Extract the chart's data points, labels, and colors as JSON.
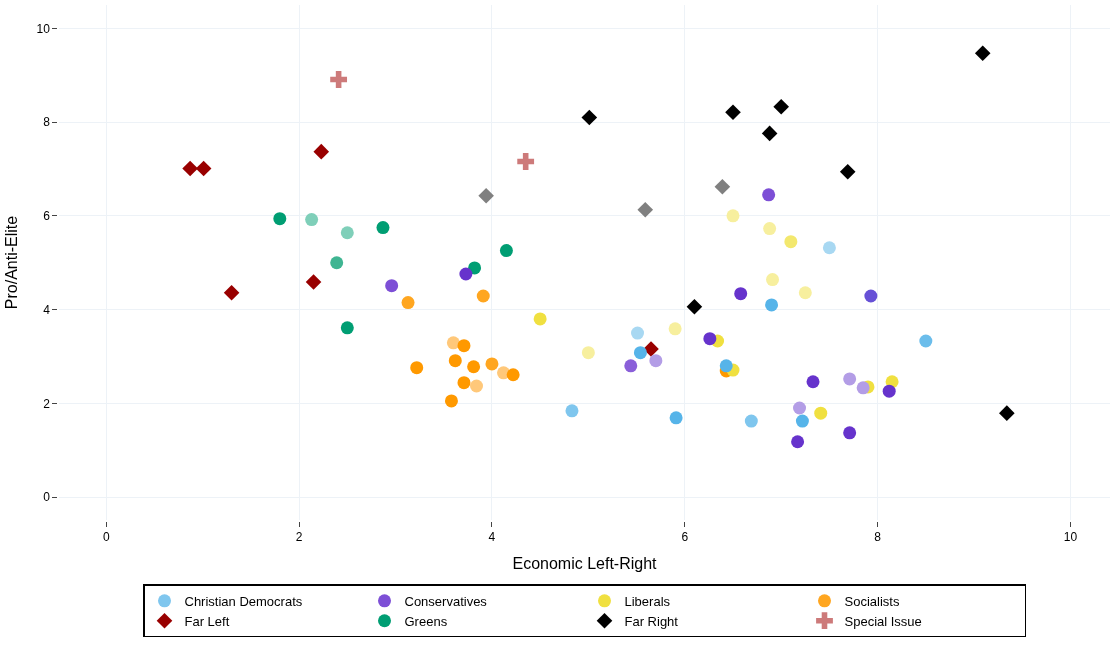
{
  "chart_data": {
    "type": "scatter",
    "xlabel": "Economic Left-Right",
    "ylabel": "Pro/Anti-Elite",
    "xlim": [
      -0.49,
      10.41
    ],
    "ylim": [
      -0.49,
      10.5
    ],
    "xticks": [
      0,
      2,
      4,
      6,
      8,
      10
    ],
    "yticks": [
      0,
      2,
      4,
      6,
      8,
      10
    ],
    "grid": true,
    "legend": "bottom",
    "series": [
      {
        "name": "Christian Democrats",
        "marker": "circle",
        "x": [
          4.83,
          5.51,
          5.54,
          5.91,
          6.69,
          6.43,
          6.9,
          7.5,
          7.22,
          8.5
        ],
        "values": [
          1.84,
          3.5,
          3.08,
          1.69,
          1.62,
          2.8,
          4.1,
          5.32,
          1.62,
          3.33
        ],
        "colors": [
          "#7fc6ee",
          "#a8d8f2",
          "#56b4e9",
          "#56b4e9",
          "#7fc6ee",
          "#56b4e9",
          "#56b4e9",
          "#a8d8f2",
          "#56b4e9",
          "#6bbdeb"
        ]
      },
      {
        "name": "Conservatives",
        "marker": "circle",
        "x": [
          2.96,
          3.73,
          6.87,
          6.58,
          7.93,
          6.26,
          5.44,
          5.7,
          7.33,
          7.71,
          7.85,
          8.12,
          7.19,
          7.17,
          7.71
        ],
        "values": [
          4.51,
          4.76,
          6.45,
          4.34,
          4.29,
          3.38,
          2.8,
          2.91,
          2.46,
          2.52,
          2.33,
          2.26,
          1.9,
          1.18,
          1.37
        ],
        "colors": [
          "#7d4fd6",
          "#6633cc",
          "#7d4fd6",
          "#6633cc",
          "#6650d6",
          "#6633cc",
          "#8a5fd9",
          "#b39de6",
          "#6633cc",
          "#b39de6",
          "#b39de6",
          "#6633cc",
          "#b39de6",
          "#6633cc",
          "#6633cc"
        ]
      },
      {
        "name": "Liberals",
        "marker": "circle",
        "x": [
          4.5,
          5.0,
          5.9,
          6.34,
          6.5,
          6.5,
          6.88,
          7.1,
          6.91,
          7.25,
          7.41,
          7.9,
          8.15
        ],
        "values": [
          3.8,
          3.08,
          3.59,
          3.33,
          2.71,
          6.0,
          5.73,
          5.45,
          4.64,
          4.36,
          1.79,
          2.35,
          2.46
        ],
        "colors": [
          "#f0e040",
          "#f7ef9e",
          "#f7ef9e",
          "#f0e040",
          "#f0e040",
          "#f7ef9e",
          "#f7ef9e",
          "#f3e86e",
          "#f7ef9e",
          "#f7ef9e",
          "#f0e040",
          "#f0e040",
          "#f0e040"
        ]
      },
      {
        "name": "Socialists",
        "marker": "circle",
        "x": [
          3.13,
          3.91,
          3.22,
          3.6,
          3.71,
          3.62,
          3.81,
          4.0,
          4.12,
          4.22,
          3.71,
          3.84,
          3.58,
          6.43
        ],
        "values": [
          4.15,
          4.29,
          2.76,
          3.29,
          3.23,
          2.91,
          2.78,
          2.84,
          2.65,
          2.61,
          2.44,
          2.37,
          2.05,
          2.69
        ],
        "colors": [
          "#ffa620",
          "#ffa620",
          "#ff9900",
          "#ffc87a",
          "#ff9900",
          "#ff9900",
          "#ff9900",
          "#ffa620",
          "#ffc87a",
          "#ff9900",
          "#ff9900",
          "#ffc87a",
          "#ff9900",
          "#ff9900"
        ]
      },
      {
        "name": "Far Left",
        "marker": "diamond",
        "color": "#990000",
        "x": [
          0.87,
          1.01,
          2.23,
          1.3,
          2.15,
          5.65
        ],
        "values": [
          7.01,
          7.01,
          7.37,
          4.36,
          4.59,
          3.16
        ]
      },
      {
        "name": "Greens",
        "marker": "circle",
        "x": [
          1.8,
          2.13,
          2.5,
          2.87,
          2.39,
          2.5,
          3.82,
          4.15
        ],
        "values": [
          5.94,
          5.92,
          5.64,
          5.75,
          5.0,
          3.61,
          4.89,
          5.26
        ],
        "colors": [
          "#009e73",
          "#7fcfb9",
          "#7fcfb9",
          "#009e73",
          "#3fb592",
          "#009e73",
          "#009e73",
          "#009e73"
        ]
      },
      {
        "name": "Far Right",
        "marker": "diamond",
        "x": [
          5.01,
          6.5,
          7.0,
          6.88,
          7.69,
          9.09,
          6.1,
          9.34,
          3.94,
          5.59,
          6.39
        ],
        "values": [
          8.1,
          8.21,
          8.33,
          7.76,
          6.94,
          9.47,
          4.06,
          1.79,
          6.43,
          6.13,
          6.62
        ],
        "colors": [
          "#000000",
          "#000000",
          "#000000",
          "#000000",
          "#000000",
          "#000000",
          "#000000",
          "#000000",
          "#808080",
          "#808080",
          "#808080"
        ]
      },
      {
        "name": "Special Issue",
        "marker": "cross",
        "color": "#cd7a7a",
        "x": [
          2.41,
          4.35
        ],
        "values": [
          8.91,
          7.16
        ]
      }
    ]
  }
}
